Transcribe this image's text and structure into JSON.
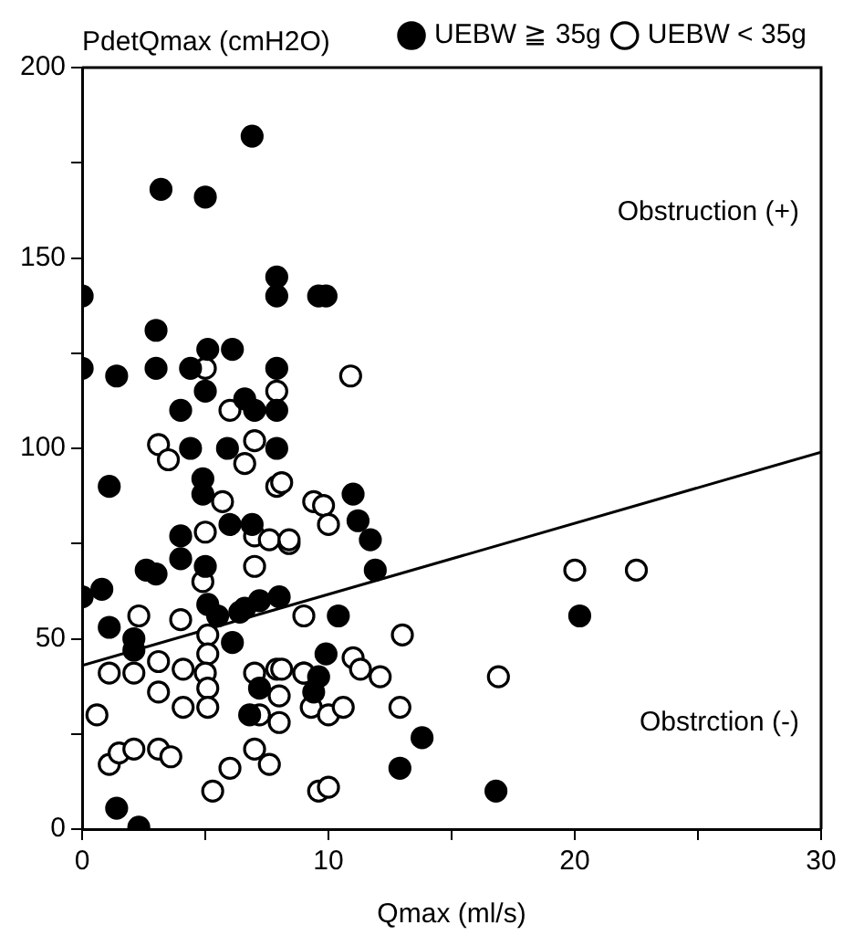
{
  "chart_data": {
    "type": "scatter",
    "xlabel": "Qmax (ml/s)",
    "ylabel": "PdetQmax (cmH2O)",
    "annotations": [
      "Obstruction (+)",
      "Obstrction (-)"
    ],
    "xlim": [
      0,
      30
    ],
    "xticks": [
      0,
      {
        "value": 5,
        "label": null
      },
      10,
      {
        "value": 15,
        "label": null
      },
      20,
      {
        "value": 25,
        "label": null
      },
      30
    ],
    "ylim": [
      0,
      200
    ],
    "yticks": [
      0,
      {
        "value": 25,
        "label": null
      },
      50,
      {
        "value": 75,
        "label": null
      },
      100,
      {
        "value": 125,
        "label": null
      },
      150,
      {
        "value": 175,
        "label": null
      },
      200
    ],
    "grid": false,
    "legend": "top right",
    "marker": "circle",
    "series": [
      {
        "name": "UEBW ≧ 35g",
        "color": "#000000",
        "x": [
          4.4,
          5.9,
          7.9,
          1.1,
          4.9,
          4.9,
          6,
          6.9,
          4,
          4,
          2.6,
          3,
          5,
          0,
          0.8,
          1.1,
          5.1,
          5.5,
          6.4,
          6.6,
          7.2,
          8,
          2.1,
          2.1,
          6.1,
          7.2,
          6.8,
          1.4,
          2.3,
          6.9,
          3.2,
          5,
          0,
          7.9,
          7.9,
          9.6,
          3,
          0,
          1.4,
          3,
          4.4,
          5.1,
          6.1,
          5,
          4,
          6.6,
          7,
          7.9,
          7.9,
          9.9,
          11,
          11.2,
          11.7,
          11.9,
          10.4,
          9.9,
          9.6,
          13.8,
          12.9,
          16.8,
          20.2,
          9.4
        ],
        "values": [
          100,
          100,
          100,
          90,
          92,
          88,
          80,
          80,
          77,
          71,
          68,
          67,
          69,
          61,
          63,
          53,
          59,
          56,
          57,
          58,
          60,
          61,
          47,
          50,
          49,
          37,
          30,
          5.5,
          0.5,
          182,
          168,
          166,
          140,
          145,
          140,
          140,
          131,
          121,
          119,
          121,
          121,
          126,
          126,
          115,
          110,
          113,
          110,
          121,
          110,
          140,
          88,
          81,
          76,
          68,
          56,
          46,
          40,
          24,
          16,
          10,
          56,
          36
        ]
      },
      {
        "name": "UEBW < 35g",
        "color": "#ffffff",
        "x": [
          3.1,
          3.5,
          7,
          6.6,
          7.9,
          5.7,
          5,
          7,
          7.6,
          8.4,
          7,
          4.9,
          2.3,
          4,
          5.1,
          5.1,
          3.1,
          4.1,
          5,
          5.1,
          1.1,
          2.1,
          3.1,
          4.1,
          5.1,
          7,
          7.9,
          8,
          7.2,
          8,
          9,
          0.6,
          1.1,
          1.5,
          2.1,
          3.1,
          3.6,
          5.3,
          6,
          7,
          7.6,
          9.4,
          5,
          6,
          7.9,
          8.1,
          9.8,
          10,
          8.4,
          9,
          13,
          8.1,
          9,
          11,
          11.3,
          12.1,
          9.3,
          10,
          10.6,
          12.9,
          16.9,
          9.6,
          10,
          10.9,
          20,
          22.5
        ],
        "values": [
          101,
          97,
          102,
          96,
          90,
          86,
          78,
          77,
          76,
          75,
          69,
          65,
          56,
          55,
          51,
          46,
          44,
          42,
          41,
          37,
          41,
          41,
          36,
          32,
          32,
          41,
          42,
          35,
          30,
          28,
          41,
          30,
          17,
          20,
          21,
          21,
          19,
          10,
          16,
          21,
          17,
          86,
          121,
          110,
          115,
          91,
          85,
          80,
          76,
          56,
          51,
          42,
          41,
          45,
          42,
          40,
          32,
          30,
          32,
          32,
          40,
          10,
          11,
          119,
          68,
          68
        ]
      },
      {
        "type": "line",
        "marker": "none",
        "color": "#000000",
        "x": [
          0,
          30
        ],
        "values": [
          43,
          99
        ]
      }
    ]
  }
}
